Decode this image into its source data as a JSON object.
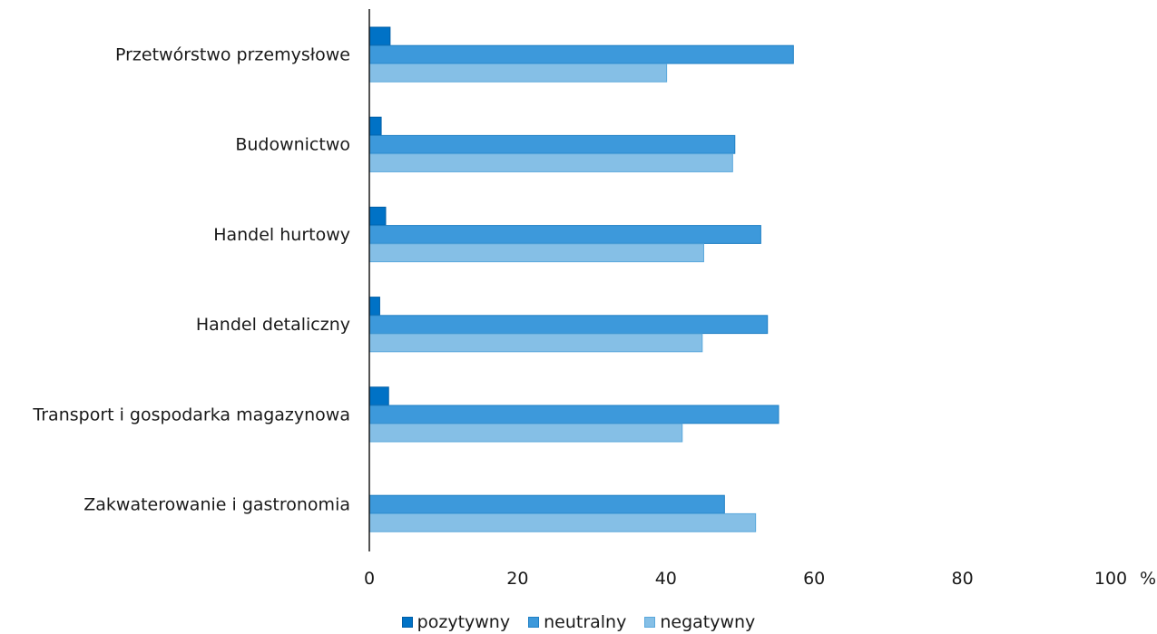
{
  "chart_data": {
    "type": "bar",
    "orientation": "horizontal",
    "categories": [
      "Przetwórstwo przemysłowe",
      "Budownictwo",
      "Handel hurtowy",
      "Handel detaliczny",
      "Transport i gospodarka magazynowa",
      "Zakwaterowanie i gastronomia"
    ],
    "series": [
      {
        "name": "pozytywny",
        "color": "#0072c6",
        "values": [
          2.8,
          1.6,
          2.2,
          1.4,
          2.6,
          0
        ]
      },
      {
        "name": "neutralny",
        "color": "#3d99db",
        "values": [
          57.2,
          49.3,
          52.8,
          53.7,
          55.2,
          47.9
        ]
      },
      {
        "name": "negatywny",
        "color": "#85bfe6",
        "values": [
          40.1,
          49.0,
          45.1,
          44.9,
          42.2,
          52.1
        ]
      }
    ],
    "xlim": [
      0,
      100
    ],
    "xticks": [
      "0",
      "20",
      "40",
      "60",
      "80",
      "100"
    ],
    "xunit": "%",
    "grid": false,
    "legend_position": "bottom"
  }
}
